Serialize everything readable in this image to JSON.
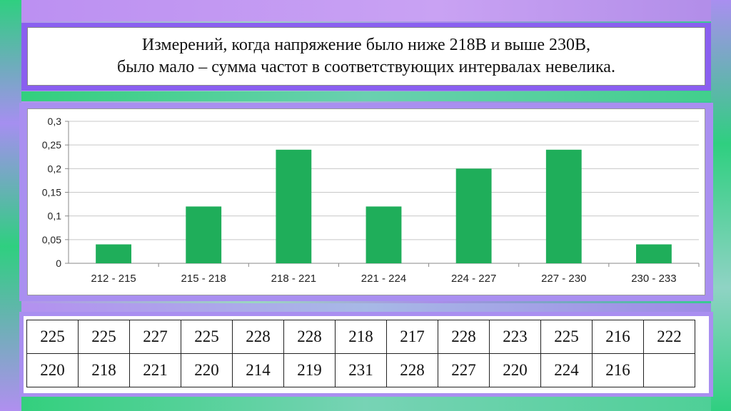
{
  "title": {
    "line1": "Измерений, когда напряжение было ниже 218В и выше 230В,",
    "line2": "было мало – сумма частот в соответствующих интервалах невелика."
  },
  "chart_data": {
    "type": "bar",
    "categories": [
      "212 - 215",
      "215 - 218",
      "218 - 221",
      "221 - 224",
      "224 - 227",
      "227 - 230",
      "230 - 233"
    ],
    "values": [
      0.04,
      0.12,
      0.24,
      0.12,
      0.2,
      0.24,
      0.04
    ],
    "yticks": [
      "0",
      "0,05",
      "0,1",
      "0,15",
      "0,2",
      "0,25",
      "0,3"
    ],
    "ylim": [
      0,
      0.3
    ],
    "grid": true,
    "bar_color": "#1fae5a"
  },
  "table": {
    "rows": [
      [
        "225",
        "225",
        "227",
        "225",
        "228",
        "228",
        "218",
        "217",
        "228",
        "223",
        "225",
        "216",
        "222"
      ],
      [
        "220",
        "218",
        "221",
        "220",
        "214",
        "219",
        "231",
        "228",
        "227",
        "220",
        "224",
        "216",
        ""
      ]
    ]
  }
}
